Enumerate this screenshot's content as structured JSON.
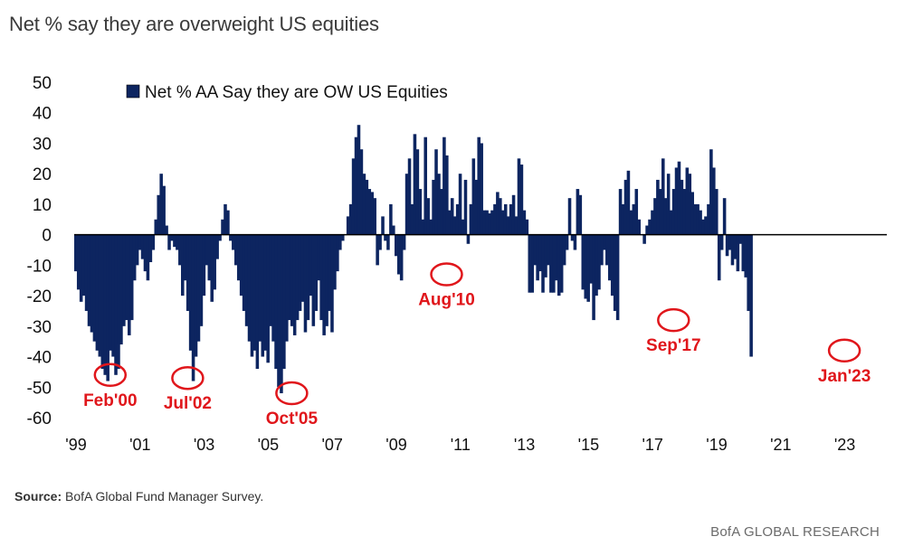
{
  "title": "Net % say they are overweight US equities",
  "source_label": "Source:",
  "source_text": " BofA Global Fund Manager Survey.",
  "footer": "BofA GLOBAL RESEARCH",
  "colors": {
    "bar": "#0d2560",
    "axis": "#000000",
    "annotation": "#e0161b"
  },
  "chart_data": {
    "type": "bar",
    "legend_position": "top-left",
    "ylim": [
      -60,
      50
    ],
    "yticks": [
      50,
      40,
      30,
      20,
      10,
      0,
      -10,
      -20,
      -30,
      -40,
      -50,
      -60
    ],
    "xticks": [
      {
        "label": "'99",
        "year": 1999
      },
      {
        "label": "'01",
        "year": 2001
      },
      {
        "label": "'03",
        "year": 2003
      },
      {
        "label": "'05",
        "year": 2005
      },
      {
        "label": "'07",
        "year": 2007
      },
      {
        "label": "'09",
        "year": 2009
      },
      {
        "label": "'11",
        "year": 2011
      },
      {
        "label": "'13",
        "year": 2013
      },
      {
        "label": "'15",
        "year": 2015
      },
      {
        "label": "'17",
        "year": 2017
      },
      {
        "label": "'19",
        "year": 2019
      },
      {
        "label": "'21",
        "year": 2021
      },
      {
        "label": "'23",
        "year": 2023
      }
    ],
    "xlim_years": [
      1999,
      2025
    ],
    "series": [
      {
        "name": "Net % AA Say they are OW US Equities",
        "start": "1999-01",
        "frequency": "monthly",
        "values": [
          -12,
          -18,
          -22,
          -20,
          -25,
          -30,
          -32,
          -35,
          -38,
          -40,
          -44,
          -46,
          -48,
          -38,
          -40,
          -46,
          -44,
          -36,
          -30,
          -28,
          -33,
          -28,
          -15,
          -10,
          -5,
          -8,
          -12,
          -15,
          -9,
          -5,
          5,
          13,
          20,
          16,
          3,
          -5,
          -2,
          -4,
          -5,
          -10,
          -20,
          -15,
          -25,
          -38,
          -48,
          -40,
          -35,
          -30,
          -20,
          -10,
          -15,
          -22,
          -18,
          -8,
          -2,
          5,
          10,
          8,
          -2,
          -5,
          -10,
          -15,
          -20,
          -25,
          -30,
          -35,
          -40,
          -38,
          -44,
          -35,
          -40,
          -38,
          -42,
          -30,
          -35,
          -44,
          -50,
          -52,
          -44,
          -35,
          -28,
          -30,
          -33,
          -28,
          -25,
          -22,
          -32,
          -28,
          -20,
          -30,
          -25,
          -15,
          -28,
          -33,
          -30,
          -25,
          -32,
          -18,
          -12,
          -5,
          -2,
          0,
          6,
          10,
          25,
          32,
          36,
          28,
          20,
          18,
          15,
          14,
          12,
          -10,
          -5,
          6,
          -2,
          -5,
          10,
          3,
          -7,
          -13,
          -15,
          -5,
          20,
          25,
          10,
          33,
          28,
          15,
          5,
          32,
          12,
          5,
          18,
          28,
          20,
          15,
          32,
          26,
          8,
          12,
          6,
          10,
          20,
          5,
          18,
          -3,
          10,
          25,
          18,
          32,
          30,
          8,
          8,
          7,
          8,
          10,
          14,
          12,
          8,
          10,
          6,
          10,
          13,
          6,
          25,
          23,
          8,
          5,
          -19,
          -19,
          -10,
          -15,
          -12,
          -19,
          -14,
          -10,
          -19,
          -19,
          -15,
          -20,
          -19,
          -10,
          -5,
          12,
          -2,
          -5,
          15,
          13,
          -18,
          -21,
          -22,
          -16,
          -28,
          -20,
          -18,
          -10,
          -5,
          -10,
          -15,
          -20,
          -25,
          -28,
          15,
          10,
          18,
          21,
          8,
          10,
          15,
          5,
          0,
          -3,
          3,
          5,
          8,
          12,
          18,
          15,
          25,
          12,
          20,
          8,
          15,
          22,
          24,
          18,
          15,
          22,
          20,
          14,
          10,
          10,
          8,
          5,
          6,
          10,
          28,
          22,
          15,
          -15,
          -5,
          12,
          -7,
          -5,
          -10,
          -8,
          -12,
          -3,
          -12,
          -14,
          -25,
          -40
        ]
      }
    ],
    "annotations": [
      {
        "label": "Feb'00",
        "date": "2000-02",
        "value": -46
      },
      {
        "label": "Jul'02",
        "date": "2002-07",
        "value": -47
      },
      {
        "label": "Oct'05",
        "date": "2005-10",
        "value": -52
      },
      {
        "label": "Aug'10",
        "date": "2010-08",
        "value": -13
      },
      {
        "label": "Sep'17",
        "date": "2017-09",
        "value": -28
      },
      {
        "label": "Jan'23",
        "date": "2023-01",
        "value": -38
      }
    ]
  }
}
